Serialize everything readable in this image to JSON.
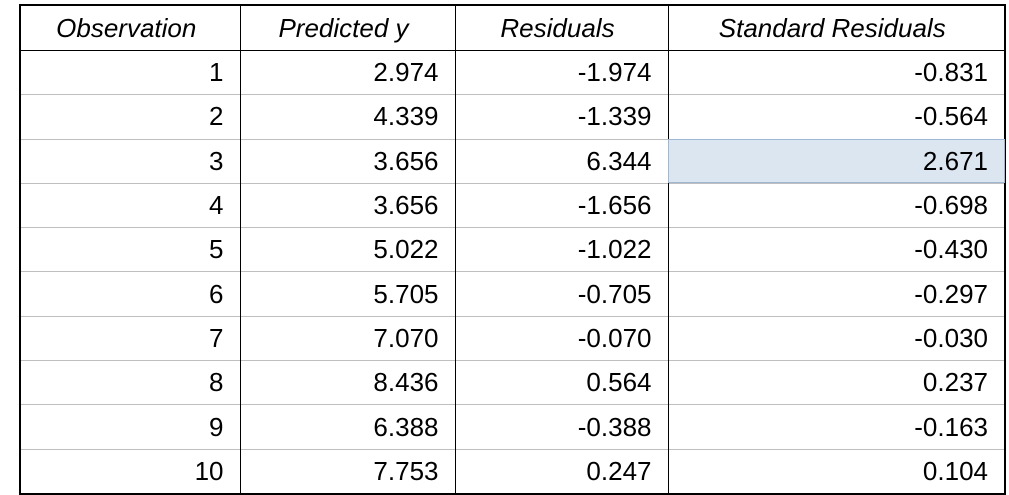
{
  "table": {
    "header": [
      "Observation",
      "Predicted y",
      "Residuals",
      "Standard Residuals"
    ],
    "rows": [
      [
        "1",
        "2.974",
        "-1.974",
        "-0.831"
      ],
      [
        "2",
        "4.339",
        "-1.339",
        "-0.564"
      ],
      [
        "3",
        "3.656",
        "6.344",
        "2.671"
      ],
      [
        "4",
        "3.656",
        "-1.656",
        "-0.698"
      ],
      [
        "5",
        "5.022",
        "-1.022",
        "-0.430"
      ],
      [
        "6",
        "5.705",
        "-0.705",
        "-0.297"
      ],
      [
        "7",
        "7.070",
        "-0.070",
        "-0.030"
      ],
      [
        "8",
        "8.436",
        "0.564",
        "0.237"
      ],
      [
        "9",
        "6.388",
        "-0.388",
        "-0.163"
      ],
      [
        "10",
        "7.753",
        "0.247",
        "0.104"
      ]
    ]
  }
}
